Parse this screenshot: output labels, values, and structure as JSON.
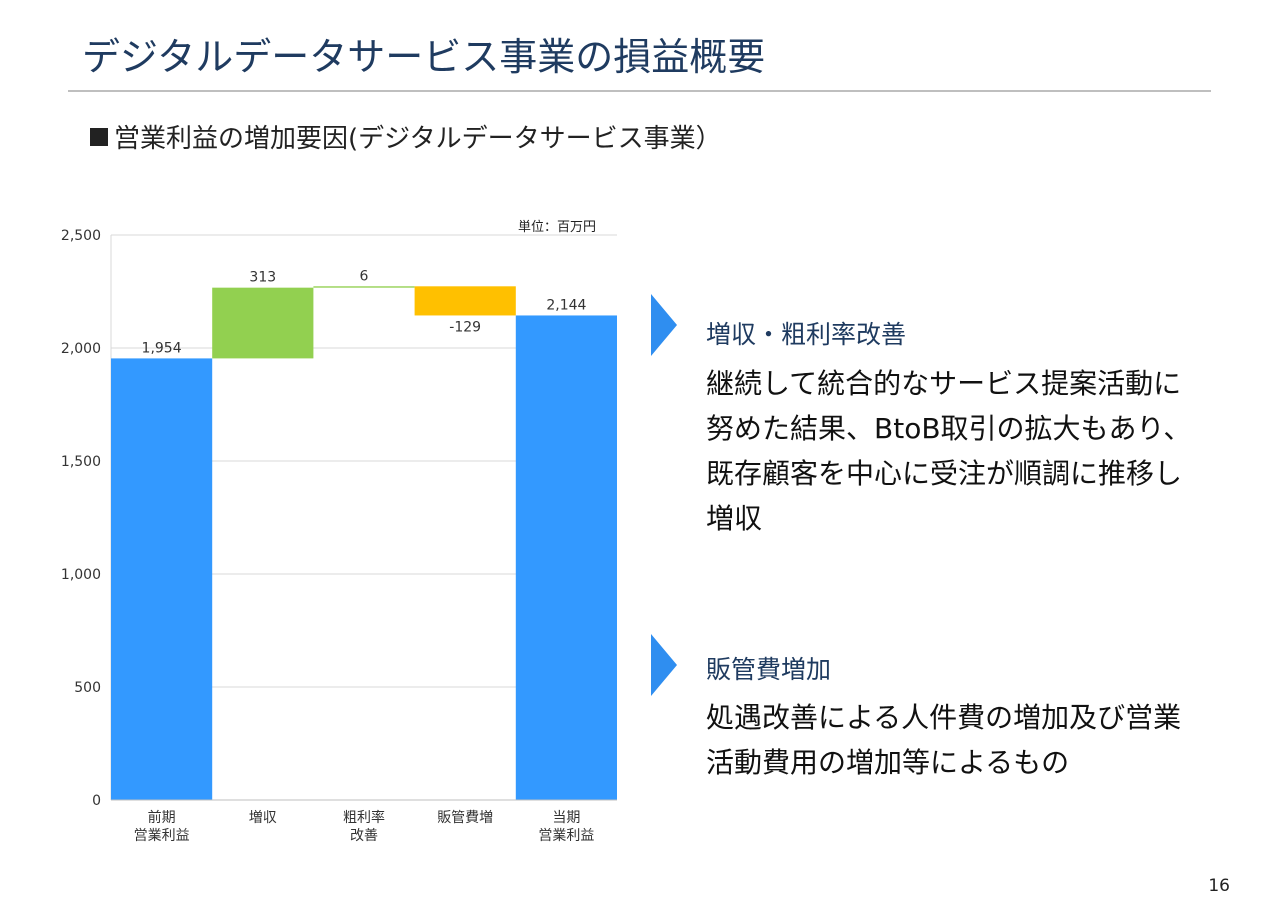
{
  "title": "デジタルデータサービス事業の損益概要",
  "subtitle": "営業利益の増加要因(デジタルデータサービス事業）",
  "unit_label": "単位：百万円",
  "chart_data": {
    "type": "bar",
    "subtype": "waterfall",
    "categories": [
      "前期\n営業利益",
      "増収",
      "粗利率\n改善",
      "販管費増",
      "当期\n営業利益"
    ],
    "values": [
      1954,
      313,
      6,
      -129,
      2144
    ],
    "data_labels": [
      "1,954",
      "313",
      "6",
      "-129",
      "2,144"
    ],
    "kinds": [
      "total",
      "delta",
      "delta",
      "delta",
      "total"
    ],
    "ylim": [
      0,
      2500
    ],
    "yticks": [
      0,
      500,
      1000,
      1500,
      2000,
      2500
    ],
    "ytick_labels": [
      "0",
      "500",
      "1,000",
      "1,500",
      "2,000",
      "2,500"
    ],
    "grid": true,
    "colors": {
      "total": "#3399ff",
      "increase": "#92d050",
      "decrease": "#ffc000",
      "connector": "#92d050",
      "gridline": "#d9d9d9"
    }
  },
  "points": [
    {
      "heading": "増収・粗利率改善",
      "body": "継続して統合的なサービス提案活動に努めた結果、BtoB取引の拡大もあり、既存顧客を中心に受注が順調に推移し増収"
    },
    {
      "heading": "販管費増加",
      "body": "処遇改善による人件費の増加及び営業活動費用の増加等によるもの"
    }
  ],
  "accent_color": "#2f8ef0",
  "page_number": "16"
}
